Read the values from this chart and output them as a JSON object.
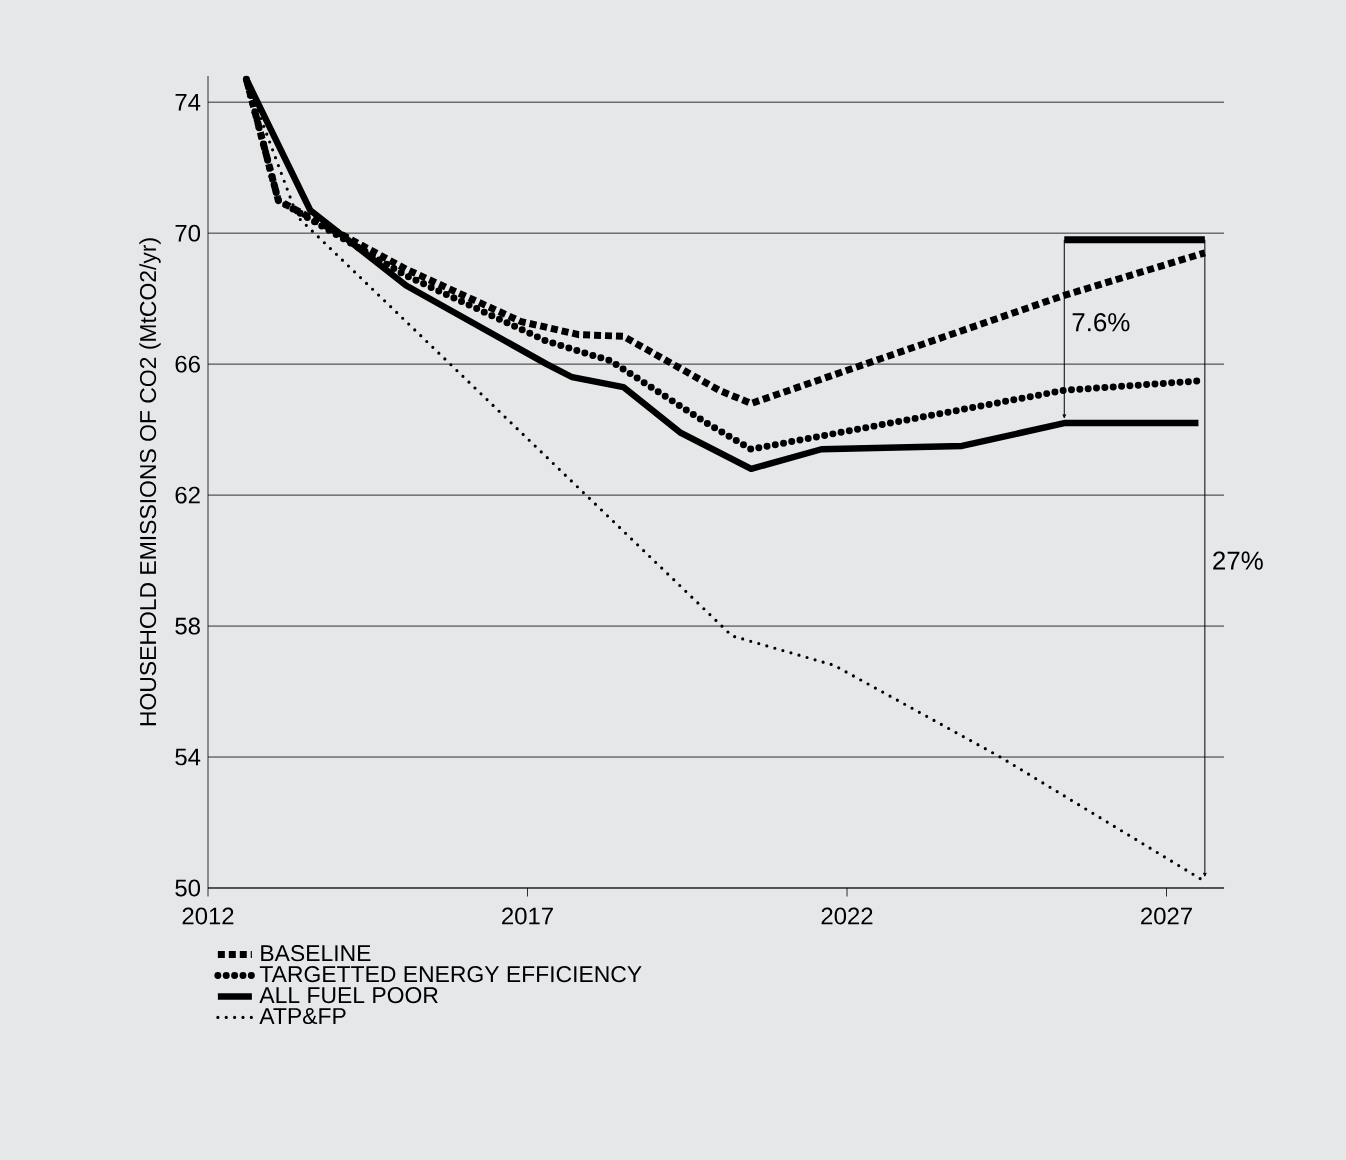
{
  "chart_data": {
    "type": "line",
    "ylabel": "HOUSEHOLD EMISSIONS OF CO2 (MtCO2/yr)",
    "xlim": [
      2012,
      2027.9
    ],
    "ylim": [
      50,
      74.8
    ],
    "xticks": [
      2012,
      2017,
      2022,
      2027
    ],
    "yticks": [
      50,
      54,
      58,
      62,
      66,
      70,
      74
    ],
    "grid": "y",
    "legend": "bottom",
    "marker": "none",
    "series": [
      {
        "name": "BASELINE",
        "color": "#000000",
        "line_style": "dashed",
        "x": [
          2012.6,
          2013.1,
          2015.1,
          2016.9,
          2017.8,
          2018.5,
          2020,
          2020.5,
          2025.4,
          2027.6
        ],
        "values": [
          74.7,
          71.0,
          68.9,
          67.3,
          66.9,
          66.85,
          65.2,
          64.8,
          68.1,
          69.4
        ]
      },
      {
        "name": "TARGETTED ENERGY EFFICIENCY",
        "color": "#000000",
        "line_style": "dotted",
        "x": [
          2012.6,
          2013.1,
          2015.1,
          2017.3,
          2018.3,
          2019.8,
          2020.5,
          2025.4,
          2027.6
        ],
        "values": [
          74.7,
          71.0,
          68.7,
          66.7,
          66.1,
          64.2,
          63.4,
          65.2,
          65.5
        ]
      },
      {
        "name": "ALL FUEL POOR",
        "color": "#000000",
        "line_style": "solid",
        "x": [
          2012.6,
          2013.6,
          2015.1,
          2017.3,
          2017.7,
          2018.5,
          2019.4,
          2020.5,
          2021.6,
          2023.8,
          2025.4,
          2027.5
        ],
        "values": [
          74.7,
          70.7,
          68.4,
          66.0,
          65.6,
          65.3,
          63.9,
          62.8,
          63.4,
          63.5,
          64.2,
          64.2
        ]
      },
      {
        "name": "ATP&FP",
        "color": "#000000",
        "line_style": "dotted",
        "x": [
          2012.6,
          2013.4,
          2020.2,
          2021.8,
          2024.4,
          2027.6
        ],
        "values": [
          74.7,
          70.5,
          57.7,
          56.8,
          54.0,
          50.2
        ]
      },
      {
        "color": "#000000",
        "line_style": "solid",
        "x": [
          2025.4,
          2027.6
        ],
        "values": [
          69.8,
          69.8
        ]
      }
    ],
    "annotations": [
      "7.6%",
      "27%"
    ]
  }
}
